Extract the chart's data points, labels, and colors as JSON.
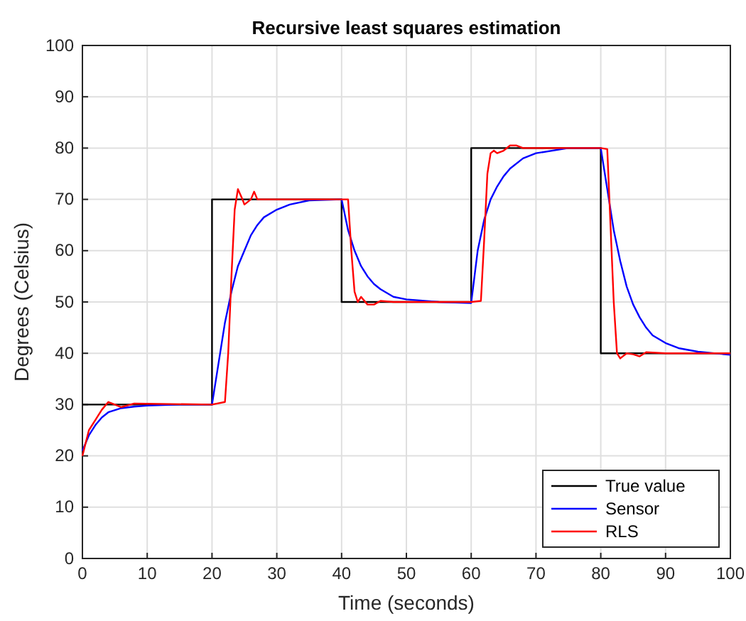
{
  "chart_data": {
    "type": "line",
    "title": "Recursive least squares estimation",
    "xlabel": "Time (seconds)",
    "ylabel": "Degrees (Celsius)",
    "xlim": [
      0,
      100
    ],
    "xticks": [
      0,
      10,
      20,
      30,
      40,
      50,
      60,
      70,
      80,
      90,
      100
    ],
    "ylim": [
      0,
      100
    ],
    "yticks": [
      0,
      10,
      20,
      30,
      40,
      50,
      60,
      70,
      80,
      90,
      100
    ],
    "grid": true,
    "legend": "bottom right",
    "marker": "none",
    "line_style": "solid",
    "series": [
      {
        "name": "True value",
        "color": "#000000",
        "x": [
          0,
          20,
          20,
          40,
          40,
          60,
          60,
          80,
          80,
          100
        ],
        "values": [
          30,
          30,
          70,
          70,
          50,
          50,
          80,
          80,
          40,
          40
        ]
      },
      {
        "name": "Sensor",
        "color": "#0000ff",
        "x": [
          0,
          1,
          2,
          3,
          4,
          6,
          8,
          10,
          15,
          20,
          21,
          22,
          23,
          24,
          25,
          26,
          27,
          28,
          30,
          32,
          35,
          40,
          41,
          42,
          43,
          44,
          45,
          46,
          48,
          50,
          55,
          60,
          61,
          62,
          63,
          64,
          65,
          66,
          68,
          70,
          75,
          80,
          81,
          82,
          83,
          84,
          85,
          86,
          87,
          88,
          90,
          92,
          95,
          100
        ],
        "values": [
          21,
          24,
          26,
          27.5,
          28.5,
          29.3,
          29.6,
          29.8,
          30,
          30,
          38,
          46,
          52,
          57,
          60,
          63,
          65,
          66.5,
          68,
          69,
          69.8,
          70,
          64,
          60,
          57,
          55,
          53.5,
          52.5,
          51,
          50.5,
          50,
          49.8,
          60,
          66,
          70,
          72.5,
          74.5,
          76,
          78,
          79,
          80,
          80,
          72,
          64,
          58,
          53,
          49.5,
          47,
          45,
          43.5,
          42,
          41,
          40.3,
          39.7
        ]
      },
      {
        "name": "RLS",
        "color": "#ff0000",
        "x": [
          0,
          1,
          2,
          3,
          4,
          5,
          6,
          8,
          20,
          22,
          22.5,
          23,
          23.5,
          24,
          24.7,
          25,
          26,
          26.5,
          27,
          28,
          40,
          41,
          41.5,
          42,
          42.5,
          43,
          44,
          45,
          46,
          48,
          60,
          61.5,
          62,
          62.5,
          63,
          63.5,
          64,
          65,
          66,
          67,
          68,
          80,
          81,
          81.5,
          82,
          82.5,
          83,
          84,
          85,
          86,
          87,
          90,
          100
        ],
        "values": [
          20,
          25,
          27,
          29,
          30.5,
          30,
          29.5,
          30.2,
          30,
          30.5,
          40,
          55,
          68,
          72,
          70,
          69,
          70,
          71.5,
          70,
          70,
          70,
          70,
          60,
          52,
          50,
          51,
          49.5,
          49.5,
          50.2,
          50,
          50,
          50.2,
          62,
          75,
          79,
          79.5,
          79,
          79.5,
          80.5,
          80.5,
          80,
          80,
          79.8,
          65,
          50,
          40,
          39,
          40,
          39.8,
          39.4,
          40.2,
          40,
          40
        ]
      }
    ]
  }
}
